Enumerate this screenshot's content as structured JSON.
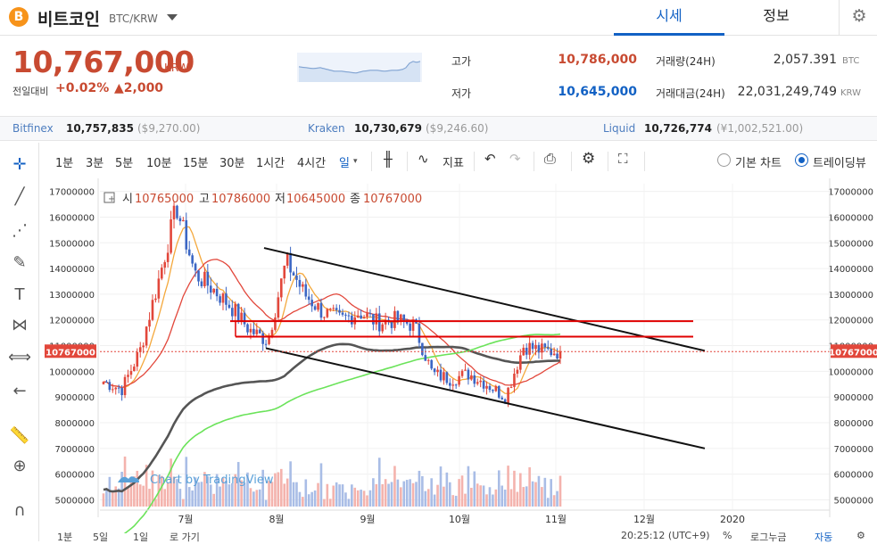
{
  "header": {
    "logo_glyph": "B",
    "coin_name": "비트코인",
    "pair": "BTC/KRW",
    "tabs": [
      {
        "label": "시세",
        "active": true
      },
      {
        "label": "정보",
        "active": false
      }
    ]
  },
  "ticker": {
    "price": "10,767,000",
    "unit": "KRW",
    "change_label": "전일대비",
    "change_pct": "+0.02%",
    "change_amt": "▲2,000",
    "high_label": "고가",
    "high": "10,786,000",
    "low_label": "저가",
    "low": "10,645,000",
    "volume_label": "거래량(24H)",
    "volume": "2,057.391",
    "volume_unit": "BTC",
    "amount_label": "거래대금(24H)",
    "amount": "22,031,249,749",
    "amount_unit": "KRW",
    "colors": {
      "up": "#c84a31",
      "down": "#1261c4"
    }
  },
  "exchanges": [
    {
      "name": "Bitfinex",
      "price": "10,757,835",
      "usd": "($9,270.00)"
    },
    {
      "name": "Kraken",
      "price": "10,730,679",
      "usd": "($9,246.60)"
    },
    {
      "name": "Liquid",
      "price": "10,726,774",
      "usd": "(¥1,002,521.00)"
    }
  ],
  "toolbar": {
    "intervals": [
      "1분",
      "3분",
      "5분",
      "10분",
      "15분",
      "30분",
      "1시간",
      "4시간",
      "일"
    ],
    "indicator_label": "지표",
    "basic_chart_label": "기본 차트",
    "tradingview_label": "트레이딩뷰"
  },
  "legend": {
    "open_label": "시",
    "open": "10765000",
    "high_label": "고",
    "high": "10786000",
    "low_label": "저",
    "low": "10645000",
    "close_label": "종",
    "close": "10767000"
  },
  "watermark": "Chart by TradingView",
  "bottombar": {
    "ranges": [
      "1분",
      "5일",
      "1일"
    ],
    "goto": "로 가기",
    "time": "20:25:12 (UTC+9)",
    "percent": "%",
    "log": "로그누금",
    "auto": "자동"
  },
  "chart_data": {
    "type": "line",
    "title": "",
    "current_price_label": "10767000",
    "y_ticks": [
      17000000,
      16000000,
      15000000,
      14000000,
      13000000,
      12000000,
      11000000,
      10000000,
      9000000,
      8000000,
      7000000,
      6000000,
      5000000
    ],
    "x_tick_labels": [
      "7월",
      "8월",
      "9월",
      "10월",
      "11월",
      "12월",
      "2020"
    ],
    "ylim": [
      4600000,
      17300000
    ],
    "x": [
      "06-01",
      "06-08",
      "06-15",
      "06-22",
      "06-26",
      "07-01",
      "07-08",
      "07-15",
      "07-22",
      "07-29",
      "08-05",
      "08-12",
      "08-19",
      "08-26",
      "09-02",
      "09-09",
      "09-16",
      "09-23",
      "09-30",
      "10-07",
      "10-14",
      "10-21",
      "10-25",
      "10-28",
      "11-01",
      "11-05"
    ],
    "series": [
      {
        "name": "",
        "values": [
          9600000,
          9300000,
          10800000,
          13500000,
          16400000,
          13800000,
          13200000,
          12500000,
          11600000,
          11200000,
          14300000,
          13000000,
          12300000,
          12000000,
          12300000,
          11900000,
          12000000,
          11800000,
          9900000,
          9700000,
          9900000,
          9500000,
          9000000,
          11000000,
          10800000,
          10767000
        ]
      }
    ]
  }
}
